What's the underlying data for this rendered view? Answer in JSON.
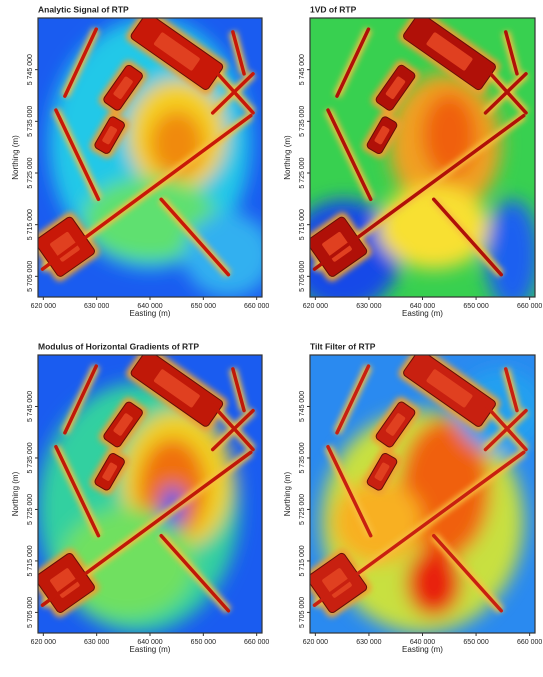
{
  "chart_data": [
    {
      "type": "map",
      "title": "Analytic Signal of RTP",
      "xlabel": "Easting (m)",
      "ylabel": "Northing (m)",
      "xlim": [
        619000,
        661000
      ],
      "ylim": [
        5701000,
        5755000
      ],
      "xticks": [
        {
          "value": 620000,
          "label": "620 000"
        },
        {
          "value": 630000,
          "label": "630 000"
        },
        {
          "value": 640000,
          "label": "640 000"
        },
        {
          "value": 650000,
          "label": "650 000"
        },
        {
          "value": 660000,
          "label": "660 000"
        }
      ],
      "yticks": [
        {
          "value": 5705000,
          "label": "5 705 000"
        },
        {
          "value": 5715000,
          "label": "5 715 000"
        },
        {
          "value": 5725000,
          "label": "5 725 000"
        },
        {
          "value": 5735000,
          "label": "5 735 000"
        },
        {
          "value": 5745000,
          "label": "5 745 000"
        }
      ]
    },
    {
      "type": "map",
      "title": "1VD of RTP",
      "xlabel": "Easting (m)",
      "ylabel": "Northing (m)",
      "xlim": [
        619000,
        661000
      ],
      "ylim": [
        5701000,
        5755000
      ],
      "xticks": [
        {
          "value": 620000,
          "label": "620 000"
        },
        {
          "value": 630000,
          "label": "630 000"
        },
        {
          "value": 640000,
          "label": "640 000"
        },
        {
          "value": 650000,
          "label": "650 000"
        },
        {
          "value": 660000,
          "label": "660 000"
        }
      ],
      "yticks": [
        {
          "value": 5705000,
          "label": "5 705 000"
        },
        {
          "value": 5715000,
          "label": "5 715 000"
        },
        {
          "value": 5725000,
          "label": "5 725 000"
        },
        {
          "value": 5735000,
          "label": "5 735 000"
        },
        {
          "value": 5745000,
          "label": "5 745 000"
        }
      ]
    },
    {
      "type": "map",
      "title": "Modulus of Horizontal Gradients of RTP",
      "xlabel": "Easting (m)",
      "ylabel": "Northing (m)",
      "xlim": [
        619000,
        661000
      ],
      "ylim": [
        5701000,
        5755000
      ],
      "xticks": [
        {
          "value": 620000,
          "label": "620 000"
        },
        {
          "value": 630000,
          "label": "630 000"
        },
        {
          "value": 640000,
          "label": "640 000"
        },
        {
          "value": 650000,
          "label": "650 000"
        },
        {
          "value": 660000,
          "label": "660 000"
        }
      ],
      "yticks": [
        {
          "value": 5705000,
          "label": "5 705 000"
        },
        {
          "value": 5715000,
          "label": "5 715 000"
        },
        {
          "value": 5725000,
          "label": "5 725 000"
        },
        {
          "value": 5735000,
          "label": "5 735 000"
        },
        {
          "value": 5745000,
          "label": "5 745 000"
        }
      ]
    },
    {
      "type": "map",
      "title": "Tilt Filter of RTP",
      "xlabel": "Easting (m)",
      "ylabel": "Northing (m)",
      "xlim": [
        619000,
        661000
      ],
      "ylim": [
        5701000,
        5755000
      ],
      "xticks": [
        {
          "value": 620000,
          "label": "620 000"
        },
        {
          "value": 630000,
          "label": "630 000"
        },
        {
          "value": 640000,
          "label": "640 000"
        },
        {
          "value": 650000,
          "label": "650 000"
        },
        {
          "value": 660000,
          "label": "660 000"
        }
      ],
      "yticks": [
        {
          "value": 5705000,
          "label": "5 705 000"
        },
        {
          "value": 5715000,
          "label": "5 715 000"
        },
        {
          "value": 5725000,
          "label": "5 725 000"
        },
        {
          "value": 5735000,
          "label": "5 735 000"
        },
        {
          "value": 5745000,
          "label": "5 745 000"
        }
      ]
    }
  ]
}
